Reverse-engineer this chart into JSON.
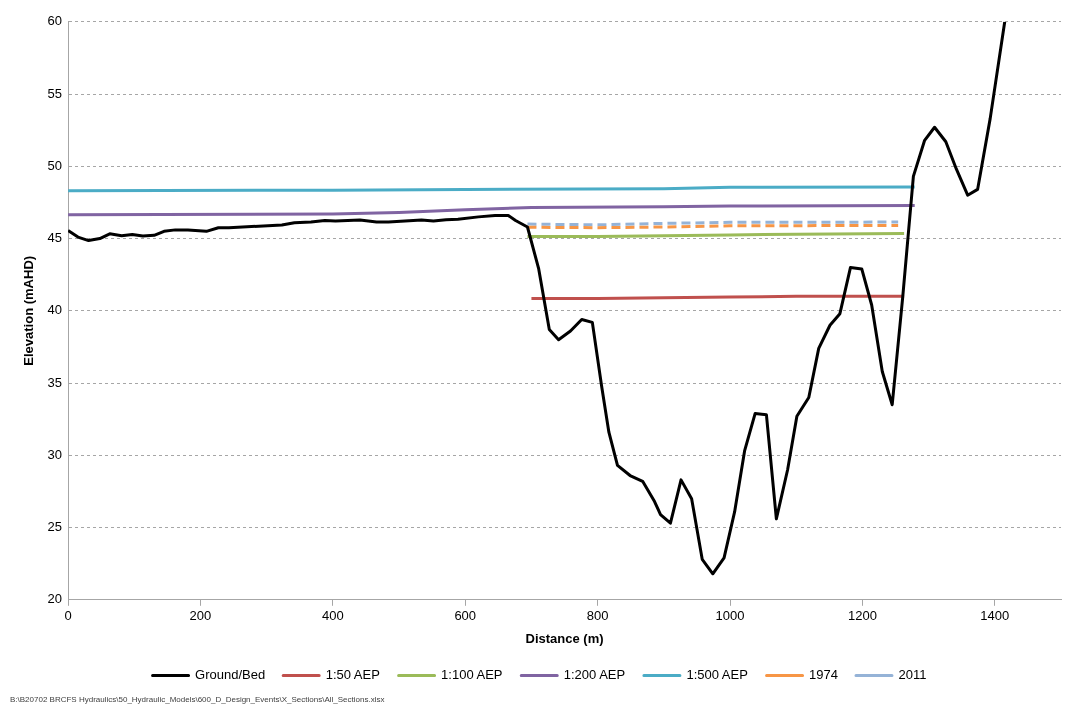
{
  "chart_data": {
    "type": "line",
    "xlabel": "Distance (m)",
    "ylabel": "Elevation (mAHD)",
    "xlim": [
      0,
      1500
    ],
    "xticks": [
      0,
      200,
      400,
      600,
      800,
      1000,
      1200,
      1400
    ],
    "ylim": [
      20,
      60
    ],
    "yticks": [
      20,
      25,
      30,
      35,
      40,
      45,
      50,
      55,
      60
    ],
    "grid": "y",
    "legend": "bottom",
    "marker": "none",
    "annotations": [
      "B:\\B20702 BRCFS Hydraulics\\50_Hydraulic_Models\\600_D_Design_Events\\X_Sections\\All_Sections.xlsx"
    ],
    "series": [
      {
        "name": "Ground/Bed",
        "color": "#000000",
        "line_style": "solid",
        "x": [
          0,
          15,
          31,
          48,
          63,
          81,
          97,
          113,
          130,
          145,
          162,
          181,
          209,
          227,
          243,
          323,
          342,
          367,
          388,
          404,
          441,
          466,
          484,
          534,
          552,
          571,
          589,
          620,
          645,
          665,
          676,
          694,
          711,
          727,
          741,
          759,
          776,
          792,
          806,
          817,
          830,
          849,
          868,
          886,
          895,
          910,
          926,
          942,
          958,
          974,
          991,
          1007,
          1022,
          1038,
          1055,
          1070,
          1087,
          1101,
          1119,
          1134,
          1151,
          1166,
          1182,
          1199,
          1214,
          1230,
          1245,
          1261,
          1277,
          1294,
          1309,
          1326,
          1342,
          1359,
          1374,
          1393,
          1415
        ],
        "values": [
          45.55,
          45.1,
          44.86,
          45.0,
          45.33,
          45.2,
          45.28,
          45.17,
          45.22,
          45.5,
          45.6,
          45.6,
          45.5,
          45.75,
          45.75,
          45.94,
          46.1,
          46.14,
          46.25,
          46.22,
          46.28,
          46.14,
          46.14,
          46.28,
          46.22,
          46.3,
          46.33,
          46.5,
          46.6,
          46.6,
          46.25,
          45.8,
          42.9,
          38.7,
          38.0,
          38.6,
          39.4,
          39.2,
          34.8,
          31.6,
          29.3,
          28.6,
          28.2,
          26.8,
          25.9,
          25.3,
          28.3,
          27.0,
          22.8,
          21.8,
          22.9,
          26.1,
          30.3,
          32.9,
          32.8,
          25.6,
          29.0,
          32.7,
          34.0,
          37.4,
          39.0,
          39.8,
          43.0,
          42.9,
          40.4,
          35.8,
          33.5,
          41.0,
          49.3,
          51.8,
          52.7,
          51.7,
          49.8,
          48.0,
          48.4,
          53.3,
          60
        ]
      },
      {
        "name": "1:50 AEP",
        "color": "#c0504d",
        "line_style": "solid",
        "x": [
          700,
          800,
          900,
          1000,
          1100,
          1263
        ],
        "values": [
          40.85,
          40.85,
          40.9,
          40.95,
          41.0,
          41.0
        ]
      },
      {
        "name": "1:100 AEP",
        "color": "#9bbb59",
        "line_style": "solid",
        "x": [
          694,
          800,
          900,
          1000,
          1100,
          1263
        ],
        "values": [
          45.14,
          45.15,
          45.2,
          45.25,
          45.3,
          45.35
        ]
      },
      {
        "name": "1:200 AEP",
        "color": "#8064a2",
        "line_style": "solid",
        "x": [
          0,
          400,
          500,
          600,
          700,
          900,
          1000,
          1279
        ],
        "values": [
          46.65,
          46.7,
          46.8,
          47.0,
          47.15,
          47.2,
          47.25,
          47.28
        ]
      },
      {
        "name": "1:500 AEP",
        "color": "#4bacc6",
        "line_style": "solid",
        "x": [
          0,
          400,
          600,
          900,
          1000,
          1279
        ],
        "values": [
          48.3,
          48.35,
          48.4,
          48.45,
          48.55,
          48.56
        ]
      },
      {
        "name": "1974",
        "color": "#f79646",
        "line_style": "dashed",
        "x": [
          694,
          800,
          900,
          1000,
          1254
        ],
        "values": [
          45.78,
          45.75,
          45.8,
          45.88,
          45.91
        ]
      },
      {
        "name": "2011",
        "color": "#95b3d7",
        "line_style": "dashed",
        "x": [
          694,
          800,
          900,
          1000,
          1254
        ],
        "values": [
          46.0,
          45.95,
          46.05,
          46.12,
          46.14
        ]
      }
    ]
  }
}
